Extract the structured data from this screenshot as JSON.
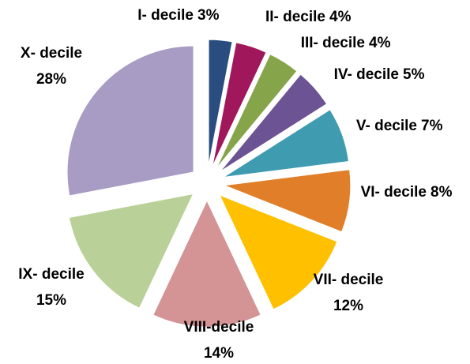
{
  "chart_data": {
    "type": "pie",
    "categories": [
      "I- decile",
      "II- decile",
      "III- decile",
      "IV- decile",
      "V- decile",
      "VI- decile",
      "VII- decile",
      "VIII-decile",
      "IX- decile",
      "X- decile"
    ],
    "values": [
      3,
      4,
      4,
      5,
      7,
      8,
      12,
      14,
      15,
      28
    ],
    "value_labels": [
      "3%",
      "4%",
      "4%",
      "5%",
      "7%",
      "8%",
      "12%",
      "14%",
      "15%",
      "28%"
    ],
    "colors": [
      "#2a4d7f",
      "#a0185b",
      "#86a44a",
      "#6b5394",
      "#3e9bb0",
      "#e07e2a",
      "#ffc000",
      "#d49496",
      "#b9d198",
      "#a89cc4"
    ]
  }
}
